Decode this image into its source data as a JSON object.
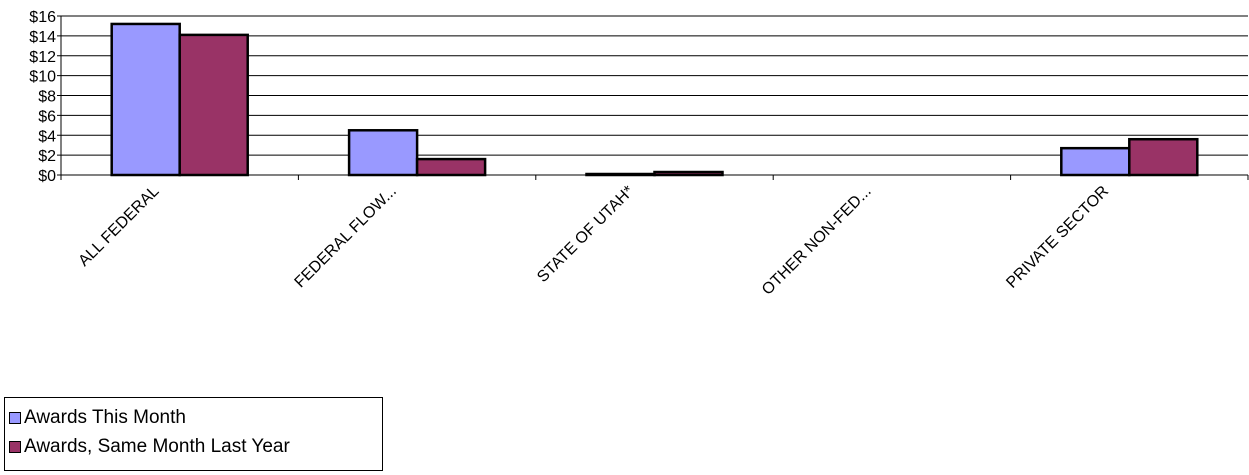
{
  "chart_data": {
    "type": "bar",
    "categories": [
      "ALL FEDERAL",
      "FEDERAL FLOW...",
      "STATE OF UTAH*",
      "OTHER NON-FED...",
      "PRIVATE SECTOR"
    ],
    "series": [
      {
        "name": "Awards This Month",
        "values": [
          15.2,
          4.5,
          0.1,
          0,
          2.7
        ],
        "color": "#9999ff"
      },
      {
        "name": "Awards, Same Month Last Year",
        "values": [
          14.1,
          1.6,
          0.3,
          0,
          3.6
        ],
        "color": "#993366"
      }
    ],
    "ylim": [
      0,
      16
    ],
    "yticks": [
      "$0",
      "$2",
      "$4",
      "$6",
      "$8",
      "$10",
      "$12",
      "$14",
      "$16"
    ],
    "grid": true,
    "legend_position": "bottom-left"
  }
}
